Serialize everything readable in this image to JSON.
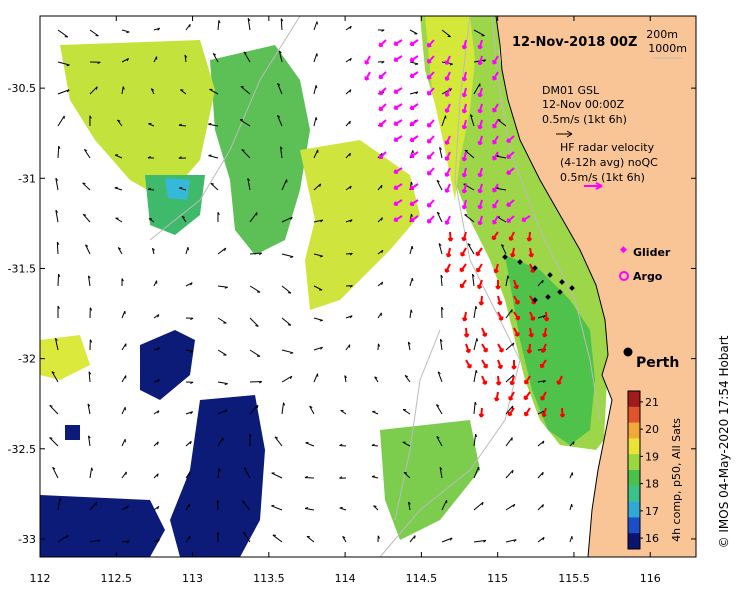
{
  "map": {
    "title": "12-Nov-2018 00Z",
    "x_ticks": [
      "112",
      "112.5",
      "113",
      "113.5",
      "114",
      "114.5",
      "115",
      "115.5",
      "116"
    ],
    "y_ticks": [
      "-30.5",
      "-31",
      "-31.5",
      "-32",
      "-32.5",
      "-33"
    ],
    "lon_range": [
      112,
      116.3
    ],
    "lat_range": [
      -33.1,
      -30.1
    ],
    "land_color": "#f9c596",
    "depth_contours": [
      "200m",
      "1000m"
    ],
    "legend": {
      "model_label": "DM01 GSL",
      "model_time": "12-Nov 00:00Z",
      "model_scale": "0.5m/s (1kt 6h)",
      "radar_label_1": "HF radar velocity",
      "radar_label_2": "(4-12h avg) noQC",
      "radar_scale": "0.5m/s (1kt 6h)",
      "glider": "Glider",
      "argo": "Argo",
      "radar_color": "#ff00ff",
      "radar2_color": "#ff0000",
      "glider_color": "#ff00ff",
      "argo_color": "#ff00ff"
    },
    "city": "Perth",
    "colorbar": {
      "ticks": [
        "21",
        "20",
        "19",
        "18",
        "17",
        "16"
      ],
      "label": "4h comp, p50, All Sats",
      "min": 15.6,
      "max": 21.4
    },
    "credit": "©  IMOS 04-May-2020 17:54 Hobart"
  }
}
